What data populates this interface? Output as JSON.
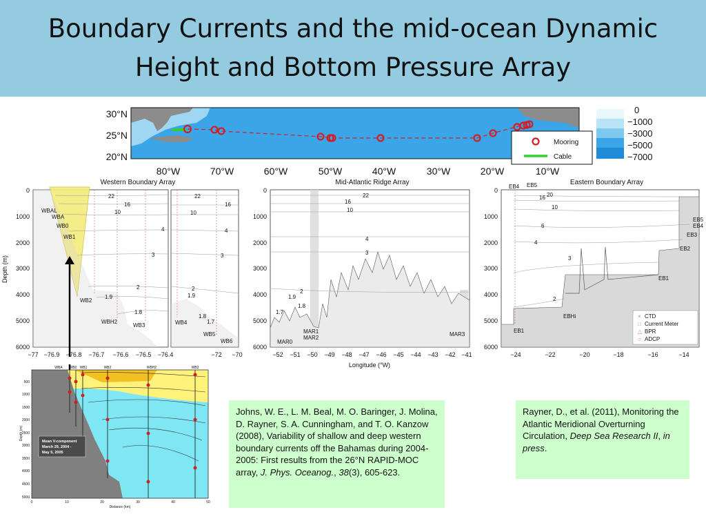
{
  "slide": {
    "title_line1": "Boundary Currents and the mid-ocean Dynamic",
    "title_line2": "Height and Bottom Pressure Array"
  },
  "map": {
    "lat_labels": [
      "30°N",
      "25°N",
      "20°N"
    ],
    "lon_labels": [
      "80°W",
      "70°W",
      "60°W",
      "50°W",
      "40°W",
      "30°W",
      "20°W",
      "10°W"
    ],
    "legend": {
      "mooring": "Mooring",
      "cable": "Cable"
    },
    "depth_scale": [
      "0",
      "−1000",
      "−3000",
      "−5000",
      "−7000"
    ],
    "colors": {
      "ocean": "#3aa6e8",
      "shelf": "#9fd6f2",
      "land": "#8c8c8c",
      "moorings": "#d21f26",
      "cable": "#2fd22f"
    }
  },
  "sections": {
    "western": {
      "title": "Western Boundary Array",
      "ylabel": "Depth (m)",
      "y_ticks": [
        "0",
        "1000",
        "2000",
        "3000",
        "4000",
        "5000",
        "6000"
      ],
      "x_ticks_left": [
        "−77",
        "−76.9",
        "−76.8",
        "−76.7",
        "−76.6",
        "−76.5",
        "−76.4"
      ],
      "x_ticks_right": [
        "−72",
        "−70"
      ],
      "contours": [
        "22",
        "16",
        "10",
        "4",
        "3",
        "2",
        "1.9",
        "1.8",
        "1.7"
      ],
      "moorings": [
        "WBAL",
        "WBA",
        "WB0",
        "WB1",
        "WB2",
        "WBH2",
        "WB3",
        "WB4",
        "WB5",
        "WB6"
      ]
    },
    "mid": {
      "title": "Mid-Atlantic Ridge Array",
      "x_ticks": [
        "−52",
        "−51",
        "−50",
        "−49",
        "−48",
        "−47",
        "−46",
        "−45",
        "−44",
        "−43",
        "−42",
        "−41"
      ],
      "xlabel": "Longitude (°W)",
      "contours": [
        "22",
        "16",
        "10",
        "4",
        "3",
        "2",
        "1.9",
        "1.8",
        "1.7"
      ],
      "moorings": [
        "MAR0",
        "MAR1",
        "MAR2",
        "MAR3"
      ]
    },
    "eastern": {
      "title": "Eastern Boundary Array",
      "x_ticks": [
        "−24",
        "−22",
        "−20",
        "−18",
        "−16",
        "−14"
      ],
      "contours": [
        "20",
        "16",
        "10",
        "6",
        "4",
        "3",
        "2"
      ],
      "moorings": [
        "EB4",
        "EB5",
        "EB5",
        "EB4",
        "EB3",
        "EB2",
        "EB1",
        "EBHi",
        "EB1"
      ],
      "legend": [
        "CTD",
        "Current Meter",
        "BPR",
        "ADCP"
      ]
    }
  },
  "inset": {
    "top_labels": [
      "WBA",
      "WB0",
      "WB1",
      "WB2",
      "WBH2",
      "WB3"
    ],
    "y_ticks": [
      "500",
      "1000",
      "1500",
      "2000",
      "2500",
      "3000",
      "3500",
      "4000",
      "4500",
      "5000"
    ],
    "x_ticks": [
      "0",
      "10",
      "20",
      "30",
      "40",
      "50"
    ],
    "ylabel": "Depth (m)",
    "xlabel": "Distance (km)",
    "box_line1": "Mean V-component",
    "box_line2": "March 29, 2004 -",
    "box_line3": "May 5, 2005"
  },
  "references": {
    "johns": {
      "authors": "Johns, W. E., L. M. Beal, M. O. Baringer, J. Molina, D. Rayner, S. A. Cunningham, and T. O. Kanzow (2008), Variability of shallow and deep western boundary currents off the Bahamas during 2004-2005: First results from the 26°N RAPID-MOC array, ",
      "journal": "J. Phys. Oceanog.",
      "sep1": ", ",
      "volume": "38",
      "rest": "(3), 605-623."
    },
    "rayner": {
      "authors": "Rayner, D., et al. (2011), Monitoring the Atlantic Meridional Overturning Circulation, ",
      "journal": "Deep Sea Research II",
      "sep1": ", ",
      "status": "in press",
      "end": "."
    }
  }
}
